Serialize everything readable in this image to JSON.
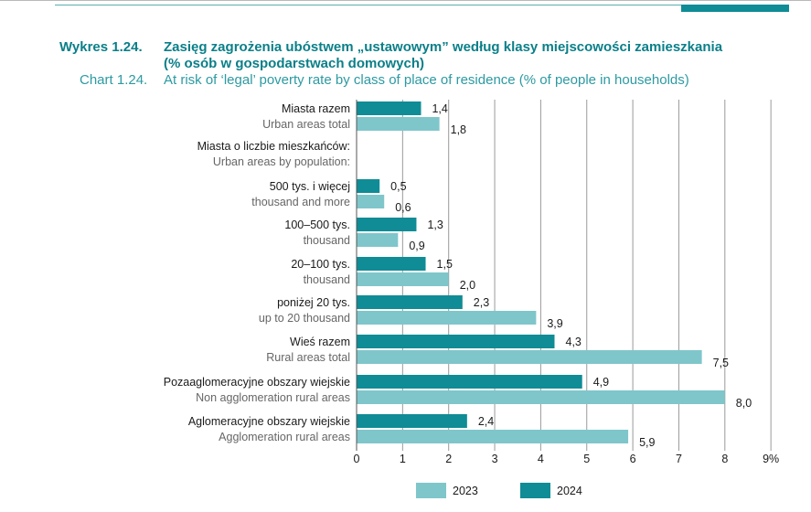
{
  "header": {
    "chart_number_pl": "Wykres 1.24.",
    "title_pl_line1": "Zasięg zagrożenia ubóstwem „ustawowym” według klasy miejscowości zamieszkania",
    "title_pl_line2": "(% osób w gospodarstwach domowych)",
    "chart_number_en": "Chart 1.24.",
    "title_en": "At risk of ‘legal’ poverty rate by class of place of residence (% of people in households)"
  },
  "colors": {
    "series_2023": "#7fc6cb",
    "series_2024": "#0f8c95",
    "gridline": "#9a9a9a",
    "axis": "#555555"
  },
  "chart_data": {
    "type": "bar",
    "orientation": "horizontal",
    "title": "At risk of ‘legal’ poverty rate by class of place of residence (% of people in households)",
    "xlabel": "",
    "ylabel": "",
    "xlim": [
      0,
      9
    ],
    "x_ticks": [
      "0",
      "1",
      "2",
      "3",
      "4",
      "5",
      "6",
      "7",
      "8",
      "9%"
    ],
    "grid": true,
    "legend_position": "bottom",
    "categories": [
      {
        "label_pl": "Miasta razem",
        "label_en": "Urban areas total",
        "values": {
          "2024": 1.4,
          "2023": 1.8
        },
        "value_labels": {
          "2024": "1,4",
          "2023": "1,8"
        }
      },
      {
        "label_pl": "Miasta o liczbie mieszkańców:",
        "label_en": "Urban areas by population:",
        "header": true
      },
      {
        "label_pl": "500 tys. i więcej",
        "label_en": "thousand and more",
        "values": {
          "2024": 0.5,
          "2023": 0.6
        },
        "value_labels": {
          "2024": "0,5",
          "2023": "0,6"
        }
      },
      {
        "label_pl": "100–500 tys.",
        "label_en": "thousand",
        "values": {
          "2024": 1.3,
          "2023": 0.9
        },
        "value_labels": {
          "2024": "1,3",
          "2023": "0,9"
        }
      },
      {
        "label_pl": "20–100 tys.",
        "label_en": "thousand",
        "values": {
          "2024": 1.5,
          "2023": 2.0
        },
        "value_labels": {
          "2024": "1,5",
          "2023": "2,0"
        }
      },
      {
        "label_pl": "poniżej 20 tys.",
        "label_en": "up to 20 thousand",
        "values": {
          "2024": 2.3,
          "2023": 3.9
        },
        "value_labels": {
          "2024": "2,3",
          "2023": "3,9"
        }
      },
      {
        "label_pl": "Wieś razem",
        "label_en": "Rural areas total",
        "values": {
          "2024": 4.3,
          "2023": 7.5
        },
        "value_labels": {
          "2024": "4,3",
          "2023": "7,5"
        }
      },
      {
        "label_pl": "Pozaaglomeracyjne obszary wiejskie",
        "label_en": "Non agglomeration rural areas",
        "values": {
          "2024": 4.9,
          "2023": 8.0
        },
        "value_labels": {
          "2024": "4,9",
          "2023": "8,0"
        }
      },
      {
        "label_pl": "Aglomeracyjne obszary wiejskie",
        "label_en": "Agglomeration rural areas",
        "values": {
          "2024": 2.4,
          "2023": 5.9
        },
        "value_labels": {
          "2024": "2,4",
          "2023": "5,9"
        }
      }
    ],
    "series": [
      {
        "name": "2023",
        "values": [
          1.8,
          null,
          0.6,
          0.9,
          2.0,
          3.9,
          7.5,
          8.0,
          5.9
        ]
      },
      {
        "name": "2024",
        "values": [
          1.4,
          null,
          0.5,
          1.3,
          1.5,
          2.3,
          4.3,
          4.9,
          2.4
        ]
      }
    ],
    "legend": [
      "2023",
      "2024"
    ]
  }
}
